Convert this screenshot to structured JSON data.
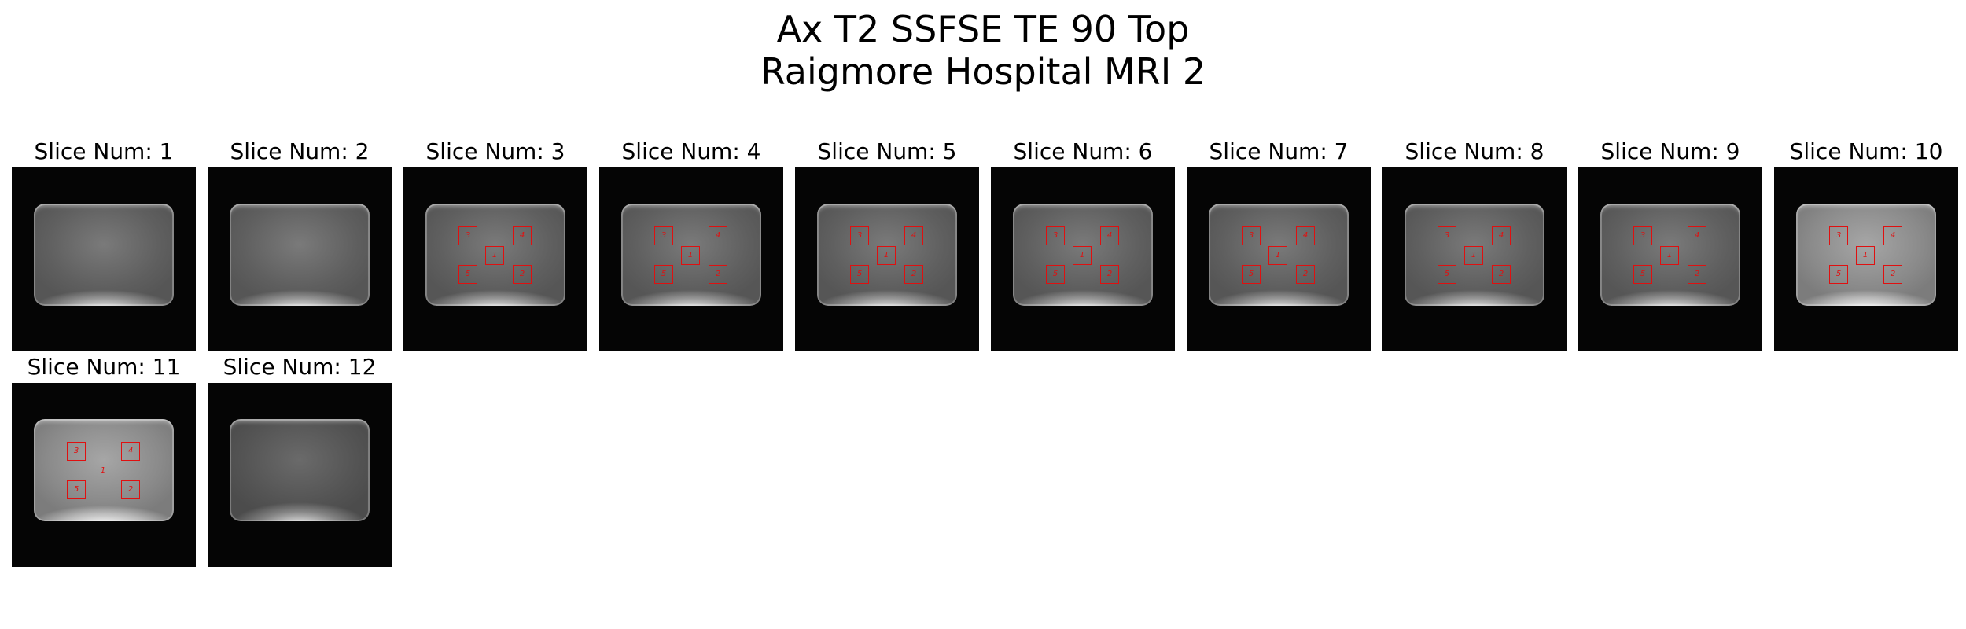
{
  "figure": {
    "title_line1": "Ax T2 SSFSE TE 90 Top",
    "title_line2": "Raigmore Hospital MRI 2"
  },
  "panels": [
    {
      "title": "Slice Num: 1",
      "has_rois": false,
      "tone": "normal"
    },
    {
      "title": "Slice Num: 2",
      "has_rois": false,
      "tone": "normal"
    },
    {
      "title": "Slice Num: 3",
      "has_rois": true,
      "tone": "normal"
    },
    {
      "title": "Slice Num: 4",
      "has_rois": true,
      "tone": "normal"
    },
    {
      "title": "Slice Num: 5",
      "has_rois": true,
      "tone": "normal"
    },
    {
      "title": "Slice Num: 6",
      "has_rois": true,
      "tone": "normal"
    },
    {
      "title": "Slice Num: 7",
      "has_rois": true,
      "tone": "normal"
    },
    {
      "title": "Slice Num: 8",
      "has_rois": true,
      "tone": "normal"
    },
    {
      "title": "Slice Num: 9",
      "has_rois": true,
      "tone": "normal"
    },
    {
      "title": "Slice Num: 10",
      "has_rois": true,
      "tone": "bright"
    },
    {
      "title": "Slice Num: 11",
      "has_rois": true,
      "tone": "bright"
    },
    {
      "title": "Slice Num: 12",
      "has_rois": false,
      "tone": "dim"
    }
  ],
  "roi_labels": [
    "1",
    "2",
    "3",
    "4",
    "5"
  ],
  "colors": {
    "roi": "#e01010",
    "background": "#050505"
  }
}
